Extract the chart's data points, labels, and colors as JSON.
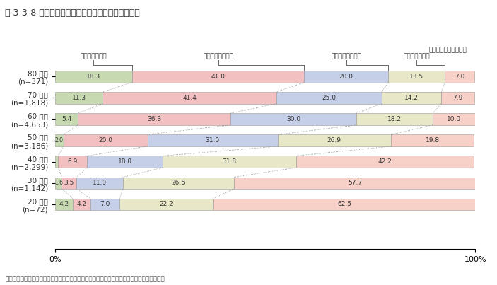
{
  "title": "第 3-3-8 図　　経営者の年齢別事業承継の準備状況",
  "categories": [
    "80 歳代\n(n=371)",
    "70 歳代\n(n=1,818)",
    "60 歳代\n(n=4,653)",
    "50 歳代\n(n=3,186)",
    "40 歳代\n(n=2,299)",
    "30 歳代\n(n=1,142)",
    "20 歳代\n(n=72)"
  ],
  "series": [
    {
      "name": "十分にしている",
      "values": [
        18.3,
        11.3,
        5.4,
        2.0,
        0.7,
        1.6,
        4.2
      ],
      "color": "#c6d9b0"
    },
    {
      "name": "ある程度している",
      "values": [
        41.0,
        41.4,
        36.3,
        20.0,
        6.9,
        3.5,
        4.2
      ],
      "color": "#f2c0c0"
    },
    {
      "name": "あまりしていない",
      "values": [
        20.0,
        25.0,
        30.0,
        31.0,
        18.0,
        11.0,
        7.0
      ],
      "color": "#c5cfe8"
    },
    {
      "name": "全くしていない",
      "values": [
        13.5,
        14.2,
        18.2,
        26.9,
        31.8,
        26.5,
        22.2
      ],
      "color": "#e8e8c8"
    },
    {
      "name": "準備の必要を感じない",
      "values": [
        7.0,
        7.9,
        10.0,
        19.8,
        42.2,
        57.7,
        62.5
      ],
      "color": "#f7d0c8"
    }
  ],
  "label_header_1": "十分にしている",
  "label_header_2": "ある程度している",
  "label_header_3": "あまりしていない",
  "label_header_4": "全くしていない",
  "label_header_5": "準備の必要を感じない",
  "footer": "資料：全国商工会連合会「小規模事業者の事業活動の実態把握調査」に基づき中小企業庁作成",
  "title_color": "#333333",
  "header_color": "#c8552a",
  "bg_color": "#ffffff"
}
